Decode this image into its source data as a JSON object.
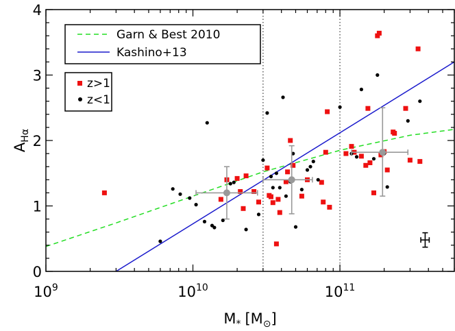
{
  "chart_data": {
    "type": "scatter",
    "xlabel": {
      "main": "M",
      "sub": "*",
      "unit": "[M",
      "unit_sub": "⊙",
      "unit_close": "]"
    },
    "ylabel": {
      "main": "A",
      "sub": "Hα"
    },
    "xscale": "log",
    "xlim": [
      1000000000.0,
      600000000000.0
    ],
    "ylim": [
      0,
      4
    ],
    "xticks": [
      {
        "value": 1000000000.0,
        "base": "10",
        "exp": "9"
      },
      {
        "value": 10000000000.0,
        "base": "10",
        "exp": "10"
      },
      {
        "value": 100000000000.0,
        "base": "10",
        "exp": "11"
      }
    ],
    "yticks": [
      {
        "value": 0,
        "label": "0"
      },
      {
        "value": 1,
        "label": "1"
      },
      {
        "value": 2,
        "label": "2"
      },
      {
        "value": 3,
        "label": "3"
      },
      {
        "value": 4,
        "label": "4"
      }
    ],
    "vlines": [
      30000000000.0,
      100000000000.0
    ],
    "lines": [
      {
        "name": "Garn & Best 2010",
        "color": "#22dd22",
        "style": "dashed",
        "x": [
          1000000000.0,
          3000000000.0,
          10000000000.0,
          30000000000.0,
          100000000000.0,
          300000000000.0,
          600000000000.0
        ],
        "y": [
          0.38,
          0.74,
          1.15,
          1.52,
          1.85,
          2.08,
          2.17
        ]
      },
      {
        "name": "Kashino+13",
        "color": "#1a1acc",
        "style": "solid",
        "x": [
          3000000000.0,
          600000000000.0
        ],
        "y": [
          0.0,
          3.2
        ]
      }
    ],
    "series": [
      {
        "name": "z>1",
        "marker": "square",
        "color": "#ee1111",
        "points": [
          [
            2500000000.0,
            1.2
          ],
          [
            15500000000.0,
            1.1
          ],
          [
            17000000000.0,
            1.4
          ],
          [
            20000000000.0,
            1.42
          ],
          [
            21000000000.0,
            1.22
          ],
          [
            22000000000.0,
            0.96
          ],
          [
            23000000000.0,
            1.46
          ],
          [
            26000000000.0,
            1.22
          ],
          [
            28000000000.0,
            1.06
          ],
          [
            32000000000.0,
            1.58
          ],
          [
            33000000000.0,
            1.16
          ],
          [
            34000000000.0,
            1.14
          ],
          [
            35000000000.0,
            1.05
          ],
          [
            37000000000.0,
            0.42
          ],
          [
            38000000000.0,
            1.1
          ],
          [
            39000000000.0,
            0.9
          ],
          [
            43000000000.0,
            1.37
          ],
          [
            44000000000.0,
            1.52
          ],
          [
            46000000000.0,
            2.0
          ],
          [
            48000000000.0,
            1.62
          ],
          [
            55000000000.0,
            1.15
          ],
          [
            60000000000.0,
            1.4
          ],
          [
            75000000000.0,
            1.36
          ],
          [
            77000000000.0,
            1.06
          ],
          [
            80000000000.0,
            1.82
          ],
          [
            82000000000.0,
            2.44
          ],
          [
            85000000000.0,
            0.98
          ],
          [
            110000000000.0,
            1.8
          ],
          [
            120000000000.0,
            1.91
          ],
          [
            125000000000.0,
            1.82
          ],
          [
            140000000000.0,
            1.76
          ],
          [
            150000000000.0,
            1.62
          ],
          [
            155000000000.0,
            2.49
          ],
          [
            160000000000.0,
            1.66
          ],
          [
            170000000000.0,
            1.2
          ],
          [
            180000000000.0,
            3.6
          ],
          [
            185000000000.0,
            3.64
          ],
          [
            190000000000.0,
            1.78
          ],
          [
            200000000000.0,
            1.83
          ],
          [
            210000000000.0,
            1.55
          ],
          [
            230000000000.0,
            2.13
          ],
          [
            235000000000.0,
            2.11
          ],
          [
            280000000000.0,
            2.49
          ],
          [
            300000000000.0,
            1.7
          ],
          [
            340000000000.0,
            3.4
          ],
          [
            350000000000.0,
            1.68
          ]
        ]
      },
      {
        "name": "z<1",
        "marker": "circle",
        "color": "#000000",
        "points": [
          [
            6000000000.0,
            0.46
          ],
          [
            7300000000.0,
            1.26
          ],
          [
            8200000000.0,
            1.18
          ],
          [
            9500000000.0,
            1.12
          ],
          [
            10500000000.0,
            1.02
          ],
          [
            12000000000.0,
            0.76
          ],
          [
            12500000000.0,
            2.27
          ],
          [
            13500000000.0,
            0.7
          ],
          [
            14000000000.0,
            0.67
          ],
          [
            16000000000.0,
            0.78
          ],
          [
            18000000000.0,
            1.34
          ],
          [
            19000000000.0,
            1.36
          ],
          [
            23000000000.0,
            0.64
          ],
          [
            28000000000.0,
            0.87
          ],
          [
            30000000000.0,
            1.7
          ],
          [
            32000000000.0,
            2.42
          ],
          [
            34000000000.0,
            1.45
          ],
          [
            35000000000.0,
            1.28
          ],
          [
            37000000000.0,
            1.5
          ],
          [
            39000000000.0,
            1.28
          ],
          [
            41000000000.0,
            2.66
          ],
          [
            43000000000.0,
            1.15
          ],
          [
            46000000000.0,
            1.37
          ],
          [
            48000000000.0,
            1.8
          ],
          [
            50000000000.0,
            0.68
          ],
          [
            55000000000.0,
            1.25
          ],
          [
            60000000000.0,
            1.55
          ],
          [
            63000000000.0,
            1.6
          ],
          [
            66000000000.0,
            1.68
          ],
          [
            71000000000.0,
            1.4
          ],
          [
            100000000000.0,
            2.51
          ],
          [
            120000000000.0,
            1.8
          ],
          [
            130000000000.0,
            1.75
          ],
          [
            140000000000.0,
            2.78
          ],
          [
            170000000000.0,
            1.72
          ],
          [
            180000000000.0,
            3.0
          ],
          [
            200000000000.0,
            1.8
          ],
          [
            210000000000.0,
            1.29
          ],
          [
            290000000000.0,
            2.3
          ],
          [
            350000000000.0,
            2.6
          ]
        ]
      }
    ],
    "binned": {
      "color": "#999999",
      "points": [
        {
          "x": 17000000000.0,
          "y": 1.2,
          "xlo": 10500000000.0,
          "xhi": 27500000000.0,
          "ylo": 0.8,
          "yhi": 1.6
        },
        {
          "x": 47000000000.0,
          "y": 1.4,
          "xlo": 30000000000.0,
          "xhi": 65000000000.0,
          "ylo": 0.88,
          "yhi": 1.92
        },
        {
          "x": 195000000000.0,
          "y": 1.82,
          "xlo": 120000000000.0,
          "xhi": 290000000000.0,
          "ylo": 1.15,
          "yhi": 2.5
        }
      ]
    },
    "typical_error": {
      "x": 380000000000.0,
      "y": 0.48,
      "xlo": 355000000000.0,
      "xhi": 405000000000.0,
      "ylo": 0.37,
      "yhi": 0.59,
      "color": "#000000"
    },
    "legend_lines": {
      "placement": "top-left",
      "entries": [
        "Garn & Best 2010",
        "Kashino+13"
      ]
    },
    "legend_markers": {
      "placement": "upper-left",
      "entries": [
        "z>1",
        "z<1"
      ]
    }
  }
}
